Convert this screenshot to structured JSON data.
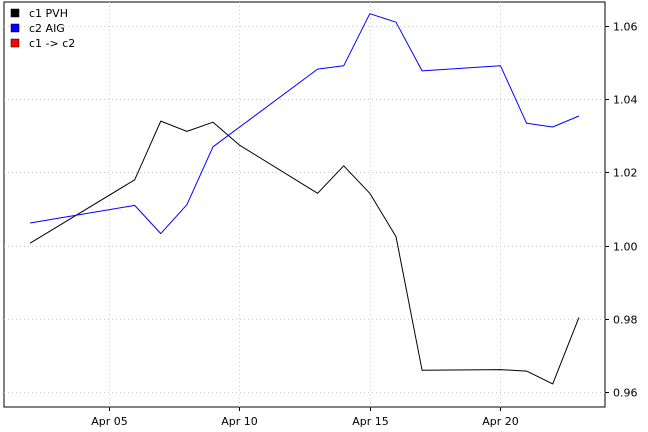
{
  "chart_data": {
    "type": "line",
    "title": "",
    "xlabel": "",
    "ylabel": "",
    "x_tick_labels": [
      "Apr 05",
      "Apr 10",
      "Apr 15",
      "Apr 20"
    ],
    "x_tick_dates": [
      "2012-04-05",
      "2012-04-10",
      "2012-04-15",
      "2012-04-20"
    ],
    "xlim": [
      "2012-04-01",
      "2012-04-24"
    ],
    "y_tick_labels": [
      "0.96",
      "0.98",
      "1.00",
      "1.02",
      "1.04",
      "1.06"
    ],
    "y_tick_values": [
      0.96,
      0.98,
      1.0,
      1.02,
      1.04,
      1.06
    ],
    "ylim": [
      0.956,
      1.0665
    ],
    "y_axis_side": "right",
    "grid": true,
    "legend_position": "top-left",
    "series": [
      {
        "name": "c1 PVH",
        "color": "#000000",
        "x": [
          "2012-04-02",
          "2012-04-06",
          "2012-04-07",
          "2012-04-08",
          "2012-04-09",
          "2012-04-10",
          "2012-04-13",
          "2012-04-14",
          "2012-04-15",
          "2012-04-16",
          "2012-04-17",
          "2012-04-20",
          "2012-04-21",
          "2012-04-22",
          "2012-04-23"
        ],
        "values": [
          1.0007,
          1.018,
          1.034,
          1.0312,
          1.0337,
          1.0275,
          1.0143,
          1.0218,
          1.0143,
          1.0025,
          0.966,
          0.9662,
          0.9658,
          0.9623,
          0.9804
        ]
      },
      {
        "name": "c2 AIG",
        "color": "#0000ff",
        "x": [
          "2012-04-02",
          "2012-04-06",
          "2012-04-07",
          "2012-04-08",
          "2012-04-09",
          "2012-04-13",
          "2012-04-14",
          "2012-04-15",
          "2012-04-16",
          "2012-04-17",
          "2012-04-20",
          "2012-04-21",
          "2012-04-22",
          "2012-04-23"
        ],
        "values": [
          1.0062,
          1.011,
          1.0033,
          1.0112,
          1.027,
          1.0482,
          1.0491,
          1.0633,
          1.061,
          1.0477,
          1.0491,
          1.0334,
          1.0324,
          1.0354
        ]
      }
    ],
    "legend": [
      {
        "label": "c1 PVH",
        "color": "#000000"
      },
      {
        "label": "c2 AIG",
        "color": "#0000ff"
      },
      {
        "label": " c1 -> c2",
        "color": "#ff0000"
      }
    ]
  }
}
